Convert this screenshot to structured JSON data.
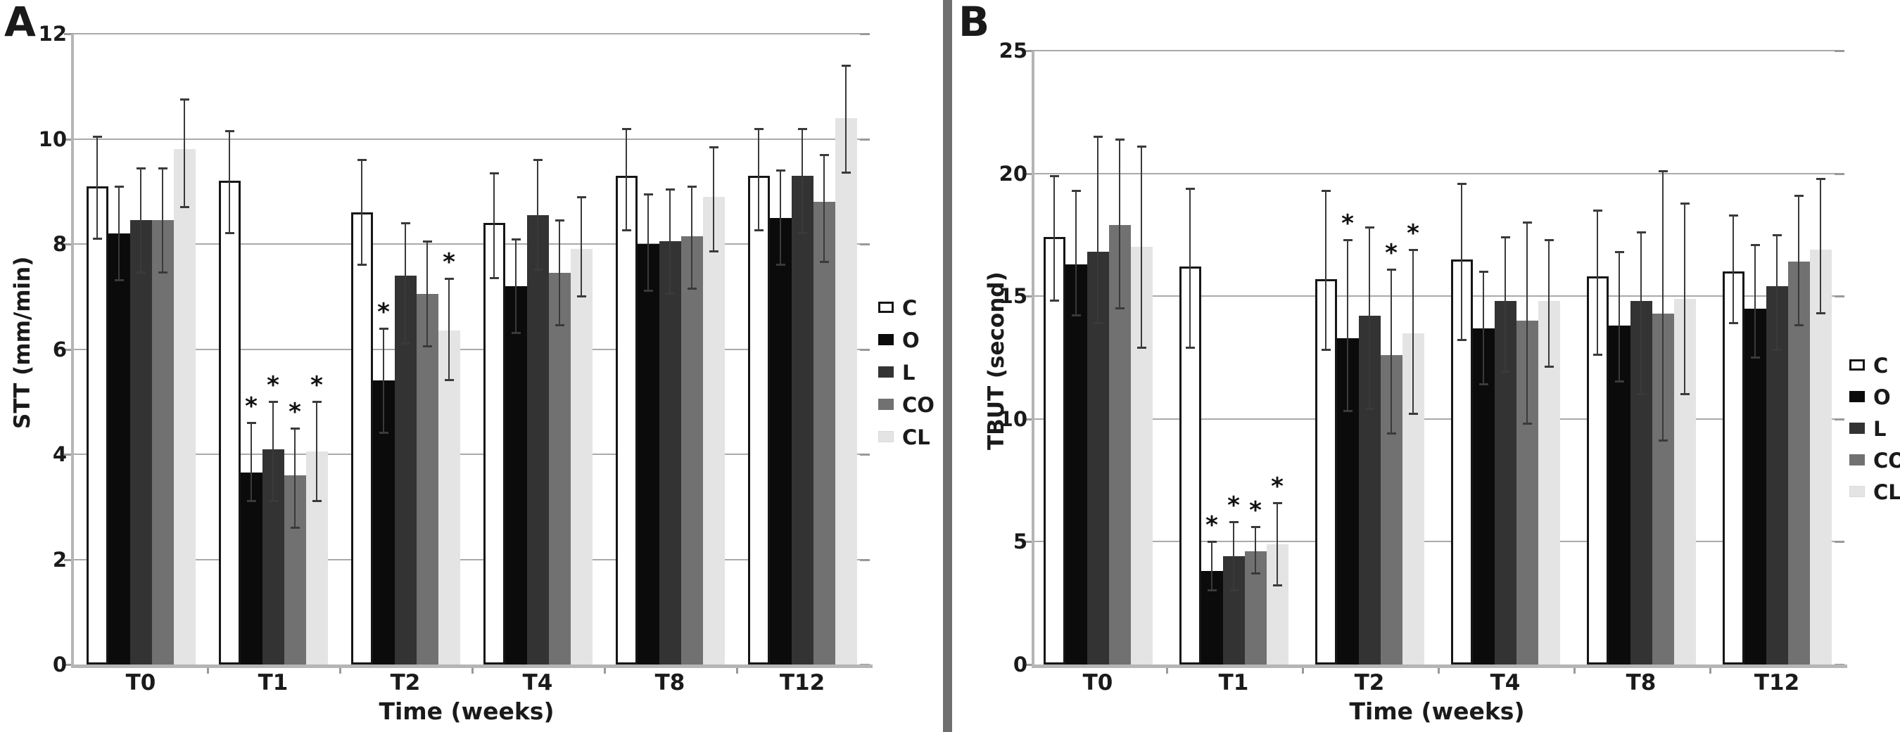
{
  "figure": {
    "panel_a_label": "A",
    "panel_b_label": "B"
  },
  "legend": {
    "position": "right",
    "items": [
      {
        "label": "C",
        "fill": "#ffffff",
        "border": "#161616"
      },
      {
        "label": "O",
        "fill": "#0b0b0b",
        "border": "#0b0b0b"
      },
      {
        "label": "L",
        "fill": "#333333",
        "border": "#333333"
      },
      {
        "label": "CO",
        "fill": "#717171",
        "border": "#717171"
      },
      {
        "label": "CL",
        "fill": "#e4e4e4",
        "border": "#dadada"
      }
    ]
  },
  "chart_data": [
    {
      "id": "A",
      "type": "bar",
      "title": "",
      "ylabel": "STT (mm/min)",
      "xlabel": "Time (weeks)",
      "ylim": [
        0,
        12
      ],
      "yticks": [
        0,
        2,
        4,
        6,
        8,
        10,
        12
      ],
      "grid": true,
      "categories": [
        "T0",
        "T1",
        "T2",
        "T4",
        "T8",
        "T12"
      ],
      "series": [
        {
          "name": "C",
          "values": [
            9.1,
            9.2,
            8.6,
            8.4,
            9.3,
            9.3
          ],
          "err_lo": [
            8.1,
            8.2,
            7.6,
            7.35,
            8.25,
            8.25
          ],
          "err_hi": [
            10.05,
            10.15,
            9.6,
            9.35,
            10.2,
            10.2
          ],
          "sig": [
            false,
            false,
            false,
            false,
            false,
            false
          ]
        },
        {
          "name": "O",
          "values": [
            8.2,
            3.65,
            5.4,
            7.2,
            8.0,
            8.5
          ],
          "err_lo": [
            7.3,
            3.1,
            4.4,
            6.3,
            7.1,
            7.6
          ],
          "err_hi": [
            9.1,
            4.6,
            6.4,
            8.1,
            8.95,
            9.4
          ],
          "sig": [
            false,
            true,
            true,
            false,
            false,
            false
          ]
        },
        {
          "name": "L",
          "values": [
            8.45,
            4.1,
            7.4,
            8.55,
            8.05,
            9.3
          ],
          "err_lo": [
            7.45,
            3.1,
            6.1,
            7.5,
            7.05,
            8.2
          ],
          "err_hi": [
            9.45,
            5.0,
            8.4,
            9.6,
            9.05,
            10.2
          ],
          "sig": [
            false,
            true,
            false,
            false,
            false,
            false
          ]
        },
        {
          "name": "CO",
          "values": [
            8.45,
            3.6,
            7.05,
            7.45,
            8.15,
            8.8
          ],
          "err_lo": [
            7.45,
            2.6,
            6.05,
            6.45,
            7.15,
            7.65
          ],
          "err_hi": [
            9.45,
            4.5,
            8.05,
            8.45,
            9.1,
            9.7
          ],
          "sig": [
            false,
            true,
            false,
            false,
            false,
            false
          ]
        },
        {
          "name": "CL",
          "values": [
            9.8,
            4.05,
            6.35,
            7.9,
            8.9,
            10.4
          ],
          "err_lo": [
            8.7,
            3.1,
            5.4,
            7.0,
            7.85,
            9.35
          ],
          "err_hi": [
            10.75,
            5.0,
            7.35,
            8.9,
            9.85,
            11.4
          ],
          "sig": [
            false,
            true,
            true,
            false,
            false,
            false
          ]
        }
      ]
    },
    {
      "id": "B",
      "type": "bar",
      "title": "",
      "ylabel": "TBUT (second)",
      "xlabel": "Time (weeks)",
      "ylim": [
        0,
        25
      ],
      "yticks": [
        0,
        5,
        10,
        15,
        20,
        25
      ],
      "grid": true,
      "categories": [
        "T0",
        "T1",
        "T2",
        "T4",
        "T8",
        "T12"
      ],
      "series": [
        {
          "name": "C",
          "values": [
            17.4,
            16.2,
            15.7,
            16.5,
            15.8,
            16.0
          ],
          "err_lo": [
            14.8,
            12.9,
            12.8,
            13.2,
            12.6,
            13.9
          ],
          "err_hi": [
            19.9,
            19.4,
            19.3,
            19.6,
            18.5,
            18.3
          ],
          "sig": [
            false,
            false,
            false,
            false,
            false,
            false
          ]
        },
        {
          "name": "O",
          "values": [
            16.3,
            3.8,
            13.3,
            13.7,
            13.8,
            14.5
          ],
          "err_lo": [
            14.2,
            3.0,
            10.3,
            11.4,
            11.5,
            12.5
          ],
          "err_hi": [
            19.3,
            5.0,
            17.3,
            16.0,
            16.8,
            17.1
          ],
          "sig": [
            false,
            true,
            true,
            false,
            false,
            false
          ]
        },
        {
          "name": "L",
          "values": [
            16.8,
            4.4,
            14.2,
            14.8,
            14.8,
            15.4
          ],
          "err_lo": [
            13.9,
            3.0,
            10.4,
            11.9,
            11.0,
            12.8
          ],
          "err_hi": [
            21.5,
            5.8,
            17.8,
            17.4,
            17.6,
            17.5
          ],
          "sig": [
            false,
            true,
            false,
            false,
            false,
            false
          ]
        },
        {
          "name": "CO",
          "values": [
            17.9,
            4.6,
            12.6,
            14.0,
            14.3,
            16.4
          ],
          "err_lo": [
            14.5,
            3.7,
            9.4,
            9.8,
            9.1,
            13.8
          ],
          "err_hi": [
            21.4,
            5.6,
            16.1,
            18.0,
            20.1,
            19.1
          ],
          "sig": [
            false,
            true,
            true,
            false,
            false,
            false
          ]
        },
        {
          "name": "CL",
          "values": [
            17.0,
            4.9,
            13.5,
            14.8,
            14.9,
            16.9
          ],
          "err_lo": [
            12.9,
            3.2,
            10.2,
            12.1,
            11.0,
            14.3
          ],
          "err_hi": [
            21.1,
            6.6,
            16.9,
            17.3,
            18.8,
            19.8
          ],
          "sig": [
            false,
            true,
            true,
            false,
            false,
            false
          ]
        }
      ]
    }
  ]
}
